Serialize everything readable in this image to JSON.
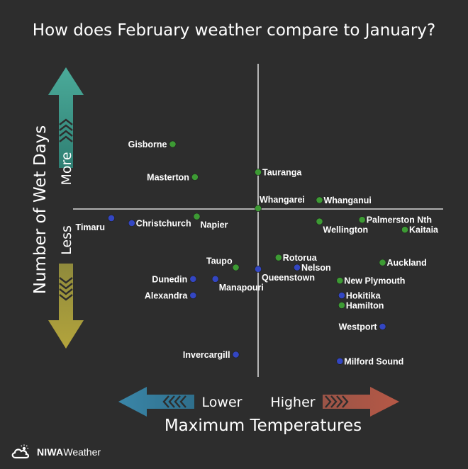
{
  "title": "How does February weather compare to January?",
  "x_axis": {
    "title": "Maximum Temperatures",
    "low_label": "Lower",
    "high_label": "Higher",
    "low_color": "#3a86a8",
    "high_color": "#b65846"
  },
  "y_axis": {
    "title": "Number of Wet Days",
    "high_label": "More",
    "low_label": "Less",
    "high_color": "#4bab9a",
    "low_color": "#b3a43c"
  },
  "colors": {
    "background": "#2d2d2d",
    "axis_line": "#d9d9d9",
    "green_point": "#3d9a34",
    "blue_point": "#3346c2"
  },
  "brand": {
    "name": "NIWA",
    "sub": "Weather",
    "icon": "cloud-sun-icon"
  },
  "chart_data": {
    "type": "scatter",
    "title": "How does February weather compare to January?",
    "xlabel": "Maximum Temperatures",
    "ylabel": "Number of Wet Days",
    "x_direction_labels": [
      "Lower",
      "Higher"
    ],
    "y_direction_labels": [
      "Less",
      "More"
    ],
    "xlim": [
      -1,
      1
    ],
    "ylim": [
      -1,
      1
    ],
    "grid": false,
    "series": [
      {
        "color": "green",
        "points": [
          {
            "label": "Gisborne",
            "x": -0.46,
            "y": 0.39,
            "label_side": "left"
          },
          {
            "label": "Masterton",
            "x": -0.34,
            "y": 0.19,
            "label_side": "left"
          },
          {
            "label": "Tauranga",
            "x": 0.0,
            "y": 0.22,
            "label_side": "right"
          },
          {
            "label": "Whangarei",
            "x": 0.0,
            "y": 0.0,
            "label_side": "above-right"
          },
          {
            "label": "Whanganui",
            "x": 0.33,
            "y": 0.05,
            "label_side": "right"
          },
          {
            "label": "Napier",
            "x": -0.33,
            "y": -0.05,
            "label_side": "below-right"
          },
          {
            "label": "Wellington",
            "x": 0.33,
            "y": -0.08,
            "label_side": "below-right"
          },
          {
            "label": "Palmerston Nth",
            "x": 0.56,
            "y": -0.07,
            "label_side": "right"
          },
          {
            "label": "Kaitaia",
            "x": 0.79,
            "y": -0.13,
            "label_side": "right"
          },
          {
            "label": "Rotorua",
            "x": 0.11,
            "y": -0.3,
            "label_side": "right"
          },
          {
            "label": "Taupo",
            "x": -0.12,
            "y": -0.36,
            "label_side": "above-left"
          },
          {
            "label": "Auckland",
            "x": 0.67,
            "y": -0.33,
            "label_side": "right"
          },
          {
            "label": "New Plymouth",
            "x": 0.44,
            "y": -0.44,
            "label_side": "right"
          },
          {
            "label": "Hamilton",
            "x": 0.45,
            "y": -0.59,
            "label_side": "right"
          }
        ]
      },
      {
        "color": "blue",
        "points": [
          {
            "label": "Timaru",
            "x": -0.79,
            "y": -0.06,
            "label_side": "below-left"
          },
          {
            "label": "Christchurch",
            "x": -0.68,
            "y": -0.09,
            "label_side": "right"
          },
          {
            "label": "Queenstown",
            "x": 0.0,
            "y": -0.37,
            "label_side": "below-right"
          },
          {
            "label": "Nelson",
            "x": 0.21,
            "y": -0.36,
            "label_side": "right"
          },
          {
            "label": "Dunedin",
            "x": -0.35,
            "y": -0.43,
            "label_side": "left"
          },
          {
            "label": "Manapouri",
            "x": -0.23,
            "y": -0.43,
            "label_side": "below-right"
          },
          {
            "label": "Alexandra",
            "x": -0.35,
            "y": -0.53,
            "label_side": "left"
          },
          {
            "label": "Hokitika",
            "x": 0.45,
            "y": -0.53,
            "label_side": "right"
          },
          {
            "label": "Westport",
            "x": 0.67,
            "y": -0.72,
            "label_side": "left"
          },
          {
            "label": "Invercargill",
            "x": -0.12,
            "y": -0.89,
            "label_side": "left"
          },
          {
            "label": "Milford Sound",
            "x": 0.44,
            "y": -0.93,
            "label_side": "right"
          }
        ]
      }
    ]
  }
}
